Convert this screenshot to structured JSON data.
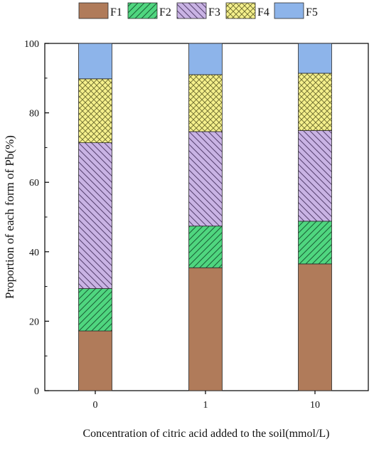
{
  "chart_data": {
    "type": "bar",
    "stacked": true,
    "categories": [
      "0",
      "1",
      "10"
    ],
    "series": [
      {
        "name": "F1",
        "values": [
          17.2,
          35.4,
          36.5
        ]
      },
      {
        "name": "F2",
        "values": [
          12.2,
          12.0,
          12.3
        ]
      },
      {
        "name": "F3",
        "values": [
          42.0,
          27.2,
          26.1
        ]
      },
      {
        "name": "F4",
        "values": [
          18.4,
          16.4,
          16.5
        ]
      },
      {
        "name": "F5",
        "values": [
          10.2,
          9.0,
          8.6
        ]
      }
    ],
    "series_colors": [
      "#b07b5a",
      "#4fd67f",
      "#c9b3e4",
      "#f5f08c",
      "#8db4ea"
    ],
    "series_patterns": [
      "solid",
      "hatch-up",
      "hatch-down",
      "crosshatch",
      "solid"
    ],
    "title": "",
    "xlabel": "Concentration of citric acid added to the soil(mmol/L)",
    "ylabel": "Proportion of each form of Pb(%)",
    "ylim": [
      0,
      100
    ],
    "yticks": [
      0,
      20,
      40,
      60,
      80,
      100
    ],
    "grid": false,
    "legend": "top"
  }
}
